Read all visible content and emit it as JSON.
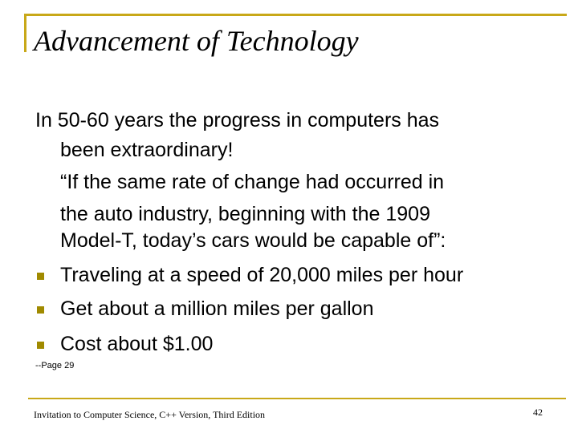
{
  "title": "Advancement of Technology",
  "body": {
    "paragraphs": [
      {
        "lines": [
          "In 50-60 years the progress in computers has",
          "been extraordinary!"
        ]
      },
      {
        "lines": [
          "“If the same rate of change had occurred in",
          "the auto industry, beginning with the 1909",
          "Model-T, today’s cars would be capable of”:"
        ]
      }
    ],
    "bullets": [
      "Traveling at a speed of 20,000 miles per hour",
      "Get about a million miles per gallon",
      "Cost about $1.00"
    ]
  },
  "source": "--Page 29",
  "footer": {
    "text": "Invitation to Computer Science, C++ Version, Third Edition",
    "page_number": "42"
  }
}
